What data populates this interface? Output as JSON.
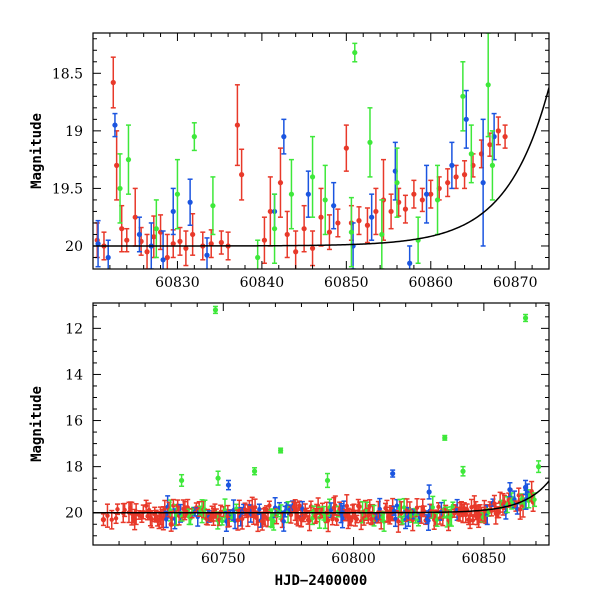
{
  "chart_data": [
    {
      "type": "scatter",
      "panel": "top",
      "xlabel": "",
      "ylabel": "Magnitude",
      "xlim": [
        60820,
        60874
      ],
      "ylim": [
        20.2,
        18.15
      ],
      "y_inverted": true,
      "xticks": [
        60830,
        60840,
        60850,
        60860,
        60870
      ],
      "yticks": [
        18.5,
        19,
        19.5,
        20
      ],
      "ytick_labels": [
        "18.5",
        "19",
        "19.5",
        "20"
      ],
      "grid": false,
      "legend": "none",
      "series": [
        {
          "color": "#e8392a",
          "points": [
            {
              "x": 60820.5,
              "y": 19.95,
              "err": 0.15
            },
            {
              "x": 60821.3,
              "y": 20.0,
              "err": 0.12
            },
            {
              "x": 60822.4,
              "y": 18.58,
              "err": 0.22
            },
            {
              "x": 60822.8,
              "y": 19.3,
              "err": 0.3
            },
            {
              "x": 60823.4,
              "y": 19.85,
              "err": 0.2
            },
            {
              "x": 60824.0,
              "y": 19.95,
              "err": 0.1
            },
            {
              "x": 60825.0,
              "y": 19.75,
              "err": 0.25
            },
            {
              "x": 60825.7,
              "y": 19.96,
              "err": 0.12
            },
            {
              "x": 60826.4,
              "y": 20.05,
              "err": 0.15
            },
            {
              "x": 60827.2,
              "y": 19.92,
              "err": 0.18
            },
            {
              "x": 60828.0,
              "y": 19.88,
              "err": 0.15
            },
            {
              "x": 60828.8,
              "y": 20.1,
              "err": 0.2
            },
            {
              "x": 60829.5,
              "y": 19.98,
              "err": 0.12
            },
            {
              "x": 60830.3,
              "y": 19.96,
              "err": 0.12
            },
            {
              "x": 60831.0,
              "y": 20.02,
              "err": 0.15
            },
            {
              "x": 60831.8,
              "y": 19.9,
              "err": 0.18
            },
            {
              "x": 60833.0,
              "y": 20.0,
              "err": 0.12
            },
            {
              "x": 60834.0,
              "y": 19.98,
              "err": 0.12
            },
            {
              "x": 60835.2,
              "y": 19.97,
              "err": 0.1
            },
            {
              "x": 60836.0,
              "y": 20.0,
              "err": 0.12
            },
            {
              "x": 60837.1,
              "y": 18.95,
              "err": 0.35
            },
            {
              "x": 60837.6,
              "y": 19.38,
              "err": 0.22
            },
            {
              "x": 60840.3,
              "y": 19.95,
              "err": 0.2
            },
            {
              "x": 60841.0,
              "y": 19.7,
              "err": 0.3
            },
            {
              "x": 60842.2,
              "y": 19.45,
              "err": 0.3
            },
            {
              "x": 60843.0,
              "y": 19.9,
              "err": 0.2
            },
            {
              "x": 60844.0,
              "y": 20.05,
              "err": 0.18
            },
            {
              "x": 60845.0,
              "y": 19.85,
              "err": 0.2
            },
            {
              "x": 60846.0,
              "y": 20.02,
              "err": 0.15
            },
            {
              "x": 60847.0,
              "y": 19.75,
              "err": 0.25
            },
            {
              "x": 60848.0,
              "y": 19.88,
              "err": 0.15
            },
            {
              "x": 60849.0,
              "y": 19.8,
              "err": 0.12
            },
            {
              "x": 60850.0,
              "y": 19.15,
              "err": 0.2
            },
            {
              "x": 60850.6,
              "y": 19.8,
              "err": 0.15
            },
            {
              "x": 60851.5,
              "y": 19.78,
              "err": 0.12
            },
            {
              "x": 60852.5,
              "y": 19.82,
              "err": 0.15
            },
            {
              "x": 60853.5,
              "y": 19.7,
              "err": 0.2
            },
            {
              "x": 60854.4,
              "y": 19.6,
              "err": 0.35
            },
            {
              "x": 60855.3,
              "y": 19.7,
              "err": 0.15
            },
            {
              "x": 60856.2,
              "y": 19.62,
              "err": 0.12
            },
            {
              "x": 60857.0,
              "y": 19.68,
              "err": 0.12
            },
            {
              "x": 60858.0,
              "y": 19.55,
              "err": 0.12
            },
            {
              "x": 60859.0,
              "y": 19.6,
              "err": 0.1
            },
            {
              "x": 60860.0,
              "y": 19.55,
              "err": 0.12
            },
            {
              "x": 60861.0,
              "y": 19.5,
              "err": 0.1
            },
            {
              "x": 60862.0,
              "y": 19.45,
              "err": 0.12
            },
            {
              "x": 60863.0,
              "y": 19.4,
              "err": 0.1
            },
            {
              "x": 60864.0,
              "y": 19.38,
              "err": 0.12
            },
            {
              "x": 60865.0,
              "y": 19.3,
              "err": 0.1
            },
            {
              "x": 60866.0,
              "y": 19.2,
              "err": 0.12
            },
            {
              "x": 60867.0,
              "y": 19.12,
              "err": 0.1
            },
            {
              "x": 60868.0,
              "y": 19.0,
              "err": 0.12
            },
            {
              "x": 60868.8,
              "y": 19.05,
              "err": 0.1
            }
          ]
        },
        {
          "color": "#1b55e0",
          "points": [
            {
              "x": 60820.6,
              "y": 19.98,
              "err": 0.2
            },
            {
              "x": 60821.8,
              "y": 20.1,
              "err": 0.15
            },
            {
              "x": 60822.6,
              "y": 18.95,
              "err": 0.1
            },
            {
              "x": 60825.5,
              "y": 19.9,
              "err": 0.15
            },
            {
              "x": 60826.9,
              "y": 20.0,
              "err": 0.2
            },
            {
              "x": 60828.3,
              "y": 20.12,
              "err": 0.25
            },
            {
              "x": 60829.5,
              "y": 19.7,
              "err": 0.2
            },
            {
              "x": 60831.5,
              "y": 19.62,
              "err": 0.2
            },
            {
              "x": 60833.5,
              "y": 20.08,
              "err": 0.15
            },
            {
              "x": 60841.5,
              "y": 19.7,
              "err": 0.15
            },
            {
              "x": 60842.6,
              "y": 19.05,
              "err": 0.15
            },
            {
              "x": 60845.5,
              "y": 19.55,
              "err": 0.2
            },
            {
              "x": 60848.5,
              "y": 19.65,
              "err": 0.2
            },
            {
              "x": 60850.8,
              "y": 20.0,
              "err": 0.2
            },
            {
              "x": 60853.0,
              "y": 19.75,
              "err": 0.2
            },
            {
              "x": 60855.8,
              "y": 19.35,
              "err": 0.25
            },
            {
              "x": 60857.5,
              "y": 20.15,
              "err": 0.15
            },
            {
              "x": 60859.5,
              "y": 19.55,
              "err": 0.25
            },
            {
              "x": 60862.5,
              "y": 19.3,
              "err": 0.2
            },
            {
              "x": 60864.2,
              "y": 18.9,
              "err": 0.25
            },
            {
              "x": 60866.2,
              "y": 19.45,
              "err": 0.55
            },
            {
              "x": 60867.5,
              "y": 19.05,
              "err": 0.2
            }
          ]
        },
        {
          "color": "#3ee83a",
          "points": [
            {
              "x": 60823.2,
              "y": 19.5,
              "err": 0.3
            },
            {
              "x": 60824.2,
              "y": 19.25,
              "err": 0.3
            },
            {
              "x": 60827.5,
              "y": 19.85,
              "err": 0.25
            },
            {
              "x": 60830.0,
              "y": 19.55,
              "err": 0.3
            },
            {
              "x": 60832.0,
              "y": 19.05,
              "err": 0.12
            },
            {
              "x": 60834.2,
              "y": 19.65,
              "err": 0.25
            },
            {
              "x": 60839.5,
              "y": 20.1,
              "err": 0.15
            },
            {
              "x": 60841.5,
              "y": 19.85,
              "err": 0.3
            },
            {
              "x": 60843.5,
              "y": 19.55,
              "err": 0.3
            },
            {
              "x": 60846.0,
              "y": 19.4,
              "err": 0.35
            },
            {
              "x": 60847.5,
              "y": 19.6,
              "err": 0.3
            },
            {
              "x": 60850.6,
              "y": 19.88,
              "err": 0.3
            },
            {
              "x": 60851.0,
              "y": 18.32,
              "err": 0.08
            },
            {
              "x": 60852.8,
              "y": 19.1,
              "err": 0.3
            },
            {
              "x": 60854.2,
              "y": 19.9,
              "err": 0.3
            },
            {
              "x": 60856.0,
              "y": 19.45,
              "err": 0.3
            },
            {
              "x": 60858.5,
              "y": 19.95,
              "err": 0.2
            },
            {
              "x": 60860.8,
              "y": 19.6,
              "err": 0.3
            },
            {
              "x": 60863.8,
              "y": 18.7,
              "err": 0.3
            },
            {
              "x": 60864.8,
              "y": 19.2,
              "err": 0.25
            },
            {
              "x": 60866.8,
              "y": 18.6,
              "err": 0.45
            },
            {
              "x": 60867.3,
              "y": 19.3,
              "err": 0.3
            }
          ]
        }
      ],
      "model_curve": {
        "color": "#000000",
        "x_ref": 60875,
        "scale": 5
      }
    },
    {
      "type": "scatter",
      "panel": "bottom",
      "xlabel": "HJD−2400000",
      "ylabel": "Magnitude",
      "xlim": [
        60700,
        60875
      ],
      "ylim": [
        21.4,
        10.9
      ],
      "y_inverted": true,
      "xticks": [
        60750,
        60800,
        60850
      ],
      "yticks": [
        12,
        14,
        16,
        18,
        20
      ],
      "ytick_labels": [
        "12",
        "14",
        "16",
        "18",
        "20"
      ],
      "grid": false,
      "legend": "none",
      "series": [
        {
          "color": "#3ee83a",
          "outliers": [
            {
              "x": 60747,
              "y": 11.2,
              "err": 0.15
            },
            {
              "x": 60866,
              "y": 11.55,
              "err": 0.15
            },
            {
              "x": 60734,
              "y": 18.6,
              "err": 0.25
            },
            {
              "x": 60748,
              "y": 18.5,
              "err": 0.3
            },
            {
              "x": 60762,
              "y": 18.2,
              "err": 0.15
            },
            {
              "x": 60772,
              "y": 17.3,
              "err": 0.1
            },
            {
              "x": 60790,
              "y": 18.6,
              "err": 0.3
            },
            {
              "x": 60835,
              "y": 16.75,
              "err": 0.1
            },
            {
              "x": 60842,
              "y": 18.2,
              "err": 0.2
            },
            {
              "x": 60871,
              "y": 18.0,
              "err": 0.25
            }
          ]
        },
        {
          "color": "#1b55e0",
          "outliers": [
            {
              "x": 60752,
              "y": 18.8,
              "err": 0.2
            },
            {
              "x": 60815,
              "y": 18.3,
              "err": 0.15
            },
            {
              "x": 60829,
              "y": 19.1,
              "err": 0.3
            },
            {
              "x": 60860,
              "y": 19.0,
              "err": 0.3
            },
            {
              "x": 60866,
              "y": 18.9,
              "err": 0.3
            }
          ]
        },
        {
          "color": "#e8392a",
          "outliers": [
            {
              "x": 60704,
              "y": 20.3,
              "err": 0.25
            },
            {
              "x": 60730,
              "y": 20.5,
              "err": 0.3
            },
            {
              "x": 60780,
              "y": 20.3,
              "err": 0.3
            }
          ]
        }
      ],
      "model_curve": {
        "color": "#000000",
        "x_ref": 60877,
        "scale": 10
      }
    }
  ]
}
